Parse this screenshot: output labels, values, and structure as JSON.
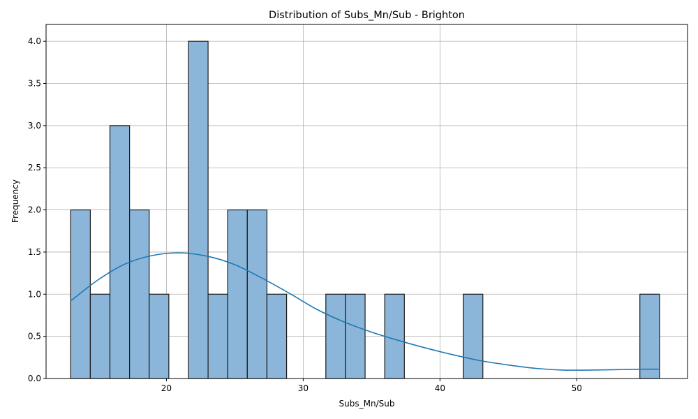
{
  "chart_data": {
    "type": "histogram",
    "title": "Distribution of Subs_Mn/Sub - Brighton",
    "xlabel": "Subs_Mn/Sub",
    "ylabel": "Frequency",
    "xlim": [
      11.2,
      58.1
    ],
    "ylim": [
      0,
      4.2
    ],
    "xticks": [
      20,
      30,
      40,
      50
    ],
    "yticks": [
      0.0,
      0.5,
      1.0,
      1.5,
      2.0,
      2.5,
      3.0,
      3.5,
      4.0
    ],
    "grid": true,
    "bin_width": 1.435,
    "bins": [
      {
        "x0": 13.0,
        "count": 2
      },
      {
        "x0": 14.435,
        "count": 1
      },
      {
        "x0": 15.87,
        "count": 3
      },
      {
        "x0": 17.305,
        "count": 2
      },
      {
        "x0": 18.74,
        "count": 1
      },
      {
        "x0": 20.175,
        "count": 0
      },
      {
        "x0": 21.61,
        "count": 4
      },
      {
        "x0": 23.045,
        "count": 1
      },
      {
        "x0": 24.48,
        "count": 2
      },
      {
        "x0": 25.915,
        "count": 2
      },
      {
        "x0": 27.35,
        "count": 1
      },
      {
        "x0": 28.785,
        "count": 0
      },
      {
        "x0": 30.22,
        "count": 0
      },
      {
        "x0": 31.655,
        "count": 1
      },
      {
        "x0": 33.09,
        "count": 1
      },
      {
        "x0": 34.525,
        "count": 0
      },
      {
        "x0": 35.96,
        "count": 1
      },
      {
        "x0": 37.395,
        "count": 0
      },
      {
        "x0": 38.83,
        "count": 0
      },
      {
        "x0": 40.265,
        "count": 0
      },
      {
        "x0": 41.7,
        "count": 1
      },
      {
        "x0": 43.135,
        "count": 0
      },
      {
        "x0": 44.57,
        "count": 0
      },
      {
        "x0": 46.005,
        "count": 0
      },
      {
        "x0": 47.44,
        "count": 0
      },
      {
        "x0": 48.875,
        "count": 0
      },
      {
        "x0": 50.31,
        "count": 0
      },
      {
        "x0": 51.745,
        "count": 0
      },
      {
        "x0": 53.18,
        "count": 0
      },
      {
        "x0": 54.615,
        "count": 1
      }
    ],
    "kde": {
      "x": [
        13.0,
        15.0,
        17.0,
        19.0,
        21.0,
        23.0,
        25.0,
        27.0,
        29.0,
        31.0,
        33.0,
        35.0,
        37.0,
        39.0,
        41.0,
        43.0,
        45.0,
        47.0,
        49.0,
        51.0,
        53.0,
        55.0,
        56.0
      ],
      "y": [
        0.92,
        1.17,
        1.36,
        1.46,
        1.49,
        1.45,
        1.35,
        1.19,
        1.01,
        0.82,
        0.67,
        0.55,
        0.45,
        0.36,
        0.28,
        0.21,
        0.16,
        0.12,
        0.1,
        0.1,
        0.105,
        0.11,
        0.11
      ]
    }
  }
}
